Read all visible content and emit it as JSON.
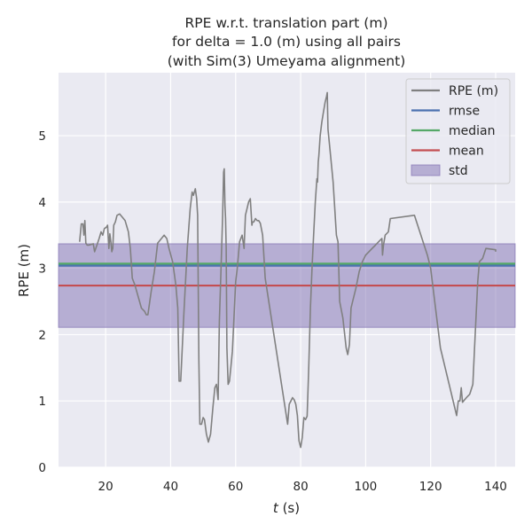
{
  "chart_data": {
    "type": "line",
    "title": [
      "RPE w.r.t. translation part (m)",
      "for delta = 1.0 (m) using all pairs",
      "(with Sim(3) Umeyama alignment)"
    ],
    "xlabel_italic": "t",
    "xlabel_rest": " (s)",
    "ylabel": "RPE (m)",
    "xlim": [
      5.5,
      146
    ],
    "ylim": [
      0,
      5.95
    ],
    "xticks": [
      20,
      40,
      60,
      80,
      100,
      120,
      140
    ],
    "yticks": [
      0,
      1,
      2,
      3,
      4,
      5
    ],
    "grid": true,
    "legend_position": "top-right",
    "stats": {
      "rmse": 3.04,
      "median": 3.07,
      "mean": 2.74,
      "std_low": 2.11,
      "std_high": 3.37
    },
    "colors": {
      "series": "#808080",
      "rmse": "#4c72b0",
      "median": "#55a868",
      "mean": "#c44e52",
      "std": "#8172b3",
      "background": "#eaeaf2",
      "grid": "#ffffff"
    },
    "legend": [
      {
        "label": "RPE (m)",
        "kind": "series"
      },
      {
        "label": "rmse",
        "kind": "rmse"
      },
      {
        "label": "median",
        "kind": "median"
      },
      {
        "label": "mean",
        "kind": "mean"
      },
      {
        "label": "std",
        "kind": "std"
      }
    ],
    "series": [
      {
        "name": "RPE (m)",
        "x": [
          12.0,
          12.5,
          13.0,
          13.3,
          13.6,
          13.9,
          14.3,
          14.8,
          15.5,
          16.2,
          16.6,
          17.3,
          18.0,
          18.6,
          19.1,
          19.6,
          20.2,
          20.6,
          21.0,
          21.3,
          21.6,
          21.9,
          22.2,
          22.5,
          23.0,
          23.5,
          24.3,
          26.0,
          27.0,
          27.6,
          28.2,
          29.0,
          31.0,
          32.0,
          32.5,
          33.0,
          34.0,
          35.0,
          36.0,
          38.0,
          38.8,
          39.5,
          40.6,
          41.6,
          42.2,
          42.6,
          43.1,
          44.1,
          45.1,
          46.0,
          46.6,
          47.0,
          47.3,
          47.6,
          48.0,
          48.3,
          48.7,
          49.0,
          49.5,
          50.0,
          50.4,
          51.0,
          51.6,
          52.3,
          53.0,
          53.6,
          54.1,
          54.6,
          55.0,
          55.5,
          56.0,
          56.3,
          56.5,
          56.7,
          56.9,
          57.1,
          57.3,
          57.7,
          58.1,
          58.5,
          59.0,
          60.0,
          60.5,
          61.2,
          62.0,
          62.6,
          63.0,
          63.5,
          64.0,
          64.5,
          65.0,
          65.2,
          65.6,
          66.1,
          66.6,
          67.1,
          67.6,
          68.3,
          69.1,
          76.0,
          76.5,
          77.0,
          77.5,
          78.0,
          78.5,
          79.0,
          79.5,
          80.0,
          80.5,
          81.0,
          81.5,
          82.0,
          82.5,
          83.0,
          83.5,
          84.0,
          84.5,
          85.0,
          85.2,
          85.4,
          85.6,
          86.0,
          86.5,
          87.0,
          87.5,
          88.0,
          88.2,
          88.4,
          89.0,
          90.0,
          91.0,
          91.5,
          92.0,
          93.0,
          94.0,
          94.5,
          95.0,
          95.5,
          96.0,
          97.0,
          98.0,
          99.0,
          100.0,
          101.0,
          102.0,
          103.0,
          104.0,
          105.0,
          105.2,
          105.5,
          106.0,
          107.0,
          107.6,
          115.0,
          119.0,
          120.0,
          123.0,
          128.0,
          128.5,
          129.0,
          129.4,
          129.8,
          131.0,
          132.0,
          133.0,
          133.5,
          134.0,
          134.5,
          135.0,
          136.0,
          137.0,
          140.0,
          140.0
        ],
        "y": [
          3.4,
          3.67,
          3.67,
          3.5,
          3.72,
          3.38,
          3.35,
          3.35,
          3.36,
          3.37,
          3.25,
          3.35,
          3.45,
          3.55,
          3.5,
          3.6,
          3.62,
          3.65,
          3.3,
          3.52,
          3.4,
          3.25,
          3.3,
          3.65,
          3.7,
          3.8,
          3.82,
          3.72,
          3.55,
          3.3,
          2.85,
          2.75,
          2.4,
          2.35,
          2.3,
          2.3,
          2.65,
          2.95,
          3.38,
          3.5,
          3.45,
          3.3,
          3.1,
          2.75,
          2.4,
          1.3,
          1.3,
          2.35,
          3.3,
          3.9,
          4.15,
          4.1,
          4.15,
          4.2,
          4.05,
          3.8,
          1.6,
          0.65,
          0.65,
          0.75,
          0.72,
          0.5,
          0.38,
          0.5,
          0.9,
          1.2,
          1.25,
          1.02,
          2.2,
          3.0,
          3.8,
          4.45,
          4.5,
          3.95,
          3.75,
          3.3,
          1.8,
          1.25,
          1.3,
          1.5,
          1.75,
          2.8,
          3.0,
          3.4,
          3.5,
          3.3,
          3.8,
          3.9,
          4.0,
          4.05,
          3.65,
          3.7,
          3.7,
          3.75,
          3.72,
          3.72,
          3.68,
          3.5,
          2.85,
          0.65,
          0.95,
          1.0,
          1.05,
          1.02,
          0.95,
          0.78,
          0.4,
          0.3,
          0.45,
          0.75,
          0.72,
          0.77,
          1.5,
          2.4,
          3.0,
          3.5,
          4.0,
          4.35,
          4.3,
          4.6,
          4.7,
          5.0,
          5.2,
          5.35,
          5.5,
          5.6,
          5.65,
          5.1,
          4.8,
          4.3,
          3.5,
          3.4,
          2.5,
          2.25,
          1.8,
          1.7,
          1.85,
          2.4,
          2.5,
          2.7,
          2.95,
          3.1,
          3.2,
          3.25,
          3.3,
          3.35,
          3.4,
          3.45,
          3.2,
          3.35,
          3.5,
          3.55,
          3.75,
          3.8,
          3.2,
          3.0,
          1.8,
          0.78,
          1.0,
          1.0,
          1.2,
          0.98,
          1.05,
          1.1,
          1.25,
          1.8,
          2.3,
          2.8,
          3.1,
          3.15,
          3.3,
          3.28,
          3.25
        ]
      }
    ]
  }
}
